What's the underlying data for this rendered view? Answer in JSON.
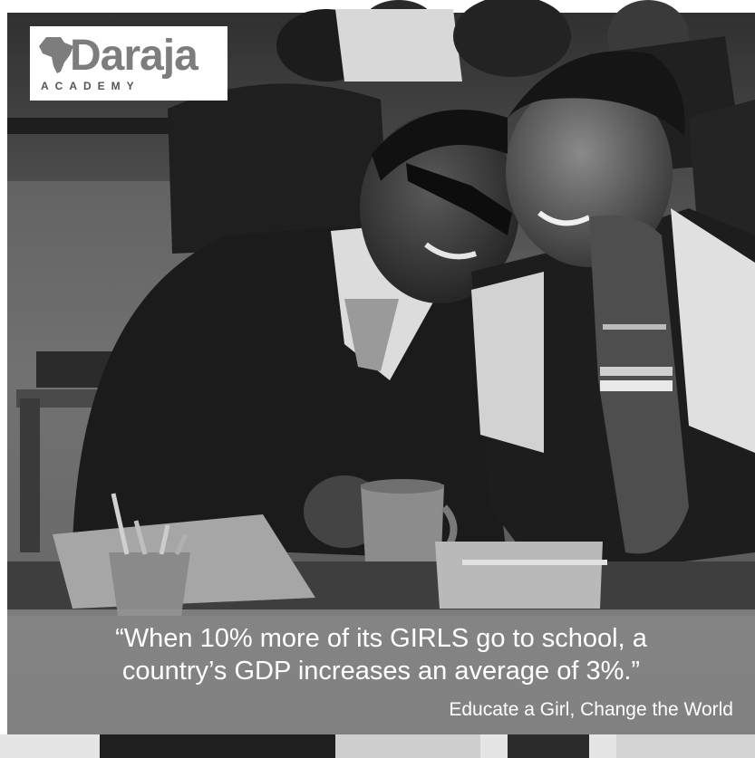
{
  "logo": {
    "wordmark": "Daraja",
    "sub": "ACADEMY",
    "icon": "africa-map-icon"
  },
  "quote": {
    "line1": "“When 10% more of its GIRLS go to school, a",
    "line2": "country’s GDP increases an average of 3%.”",
    "tagline": "Educate a Girl, Change the World"
  },
  "photo": {
    "style": "black-and-white",
    "band_color": "#969696",
    "logo_color": "#7d7d7d"
  }
}
